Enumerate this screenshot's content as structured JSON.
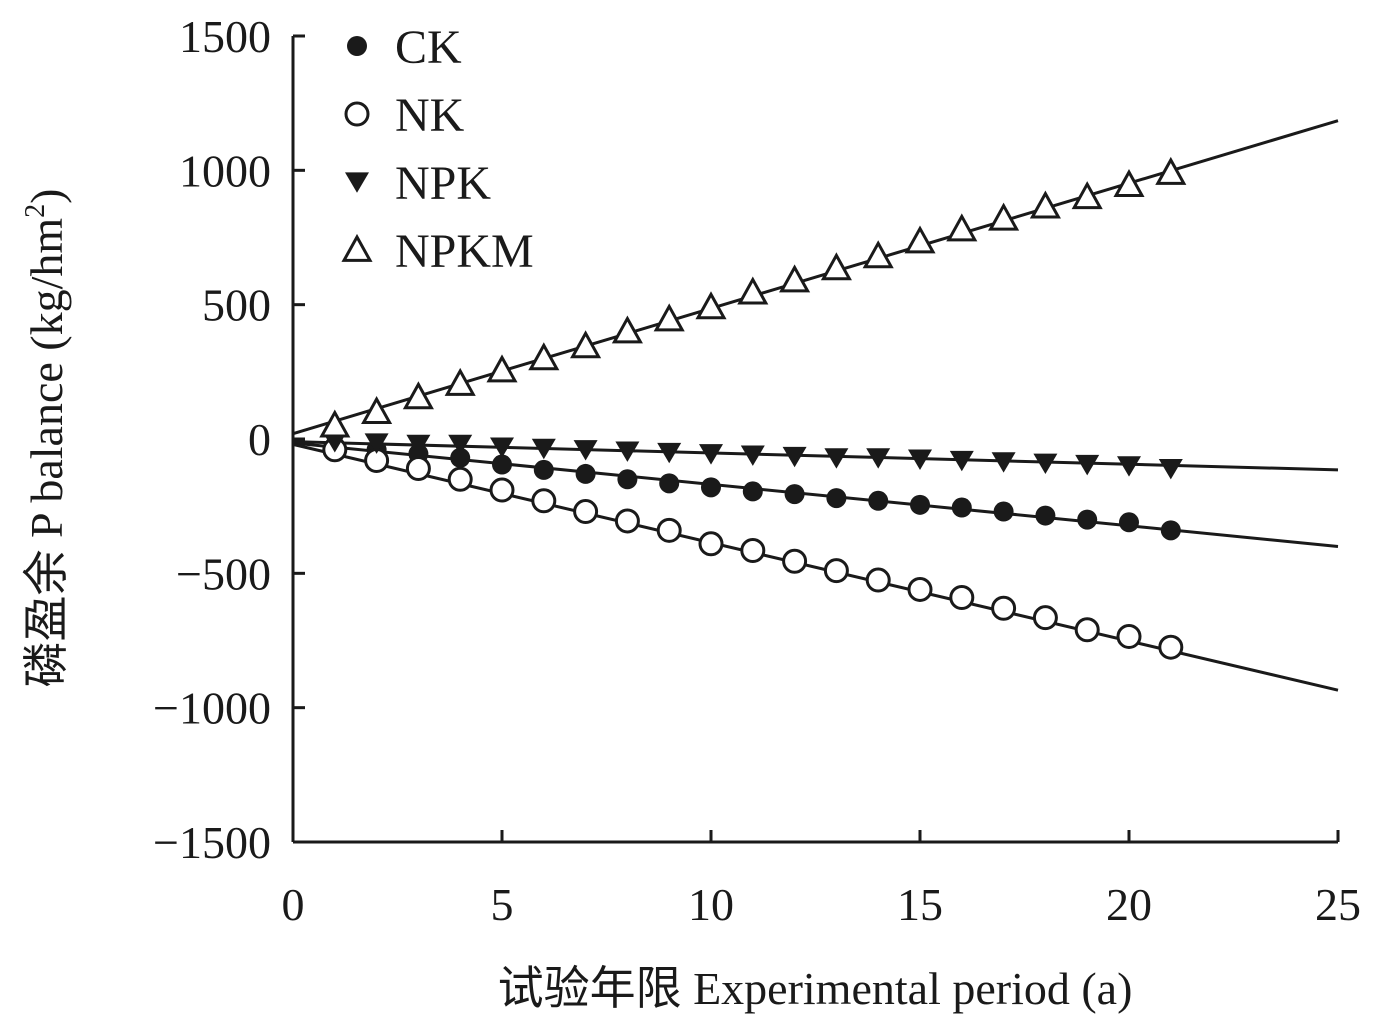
{
  "chart_data": {
    "type": "scatter",
    "title": "",
    "xlabel": "试验年限 Experimental period (a)",
    "ylabel": "磷盈余 P balance (kg/hm",
    "ylabel_sup": "2",
    "ylabel_close": ")",
    "xlim": [
      0,
      25
    ],
    "ylim": [
      -1500,
      1500
    ],
    "xticks": [
      0,
      5,
      10,
      15,
      20,
      25
    ],
    "xtick_labels": [
      "0",
      "5",
      "10",
      "15",
      "20",
      "25"
    ],
    "yticks": [
      1500,
      1000,
      500,
      0,
      -500,
      -1000,
      -1500
    ],
    "ytick_labels": [
      "1500",
      "1000",
      "500",
      "0",
      "−500",
      "−1000",
      "−1500"
    ],
    "legend_position": "top-left",
    "grid": false,
    "x": [
      1,
      2,
      3,
      4,
      5,
      6,
      7,
      8,
      9,
      10,
      11,
      12,
      13,
      14,
      15,
      16,
      17,
      18,
      19,
      20,
      21
    ],
    "series": [
      {
        "name": "CK",
        "marker": "filled-circle",
        "values": [
          -25,
          -40,
          -55,
          -70,
          -95,
          -115,
          -130,
          -150,
          -165,
          -180,
          -195,
          -205,
          -220,
          -230,
          -245,
          -255,
          -270,
          -285,
          -300,
          -310,
          -340
        ],
        "fit_line": {
          "x": [
            0,
            25
          ],
          "y": [
            -15,
            -400
          ]
        }
      },
      {
        "name": "NK",
        "marker": "open-circle",
        "values": [
          -40,
          -80,
          -110,
          -150,
          -190,
          -230,
          -270,
          -305,
          -340,
          -390,
          -415,
          -455,
          -490,
          -525,
          -560,
          -590,
          -630,
          -665,
          -710,
          -735,
          -775
        ],
        "fit_line": {
          "x": [
            0,
            25
          ],
          "y": [
            -20,
            -935
          ]
        }
      },
      {
        "name": "NPK",
        "marker": "filled-triangle-down",
        "values": [
          -10,
          -15,
          -20,
          -20,
          -30,
          -35,
          -40,
          -45,
          -50,
          -55,
          -60,
          -65,
          -70,
          -70,
          -75,
          -80,
          -85,
          -90,
          -95,
          -100,
          -110
        ],
        "fit_line": {
          "x": [
            0,
            25
          ],
          "y": [
            -10,
            -115
          ]
        }
      },
      {
        "name": "NPKM",
        "marker": "open-triangle-up",
        "values": [
          50,
          100,
          155,
          205,
          255,
          300,
          345,
          400,
          445,
          490,
          545,
          590,
          635,
          680,
          735,
          780,
          820,
          865,
          900,
          945,
          990
        ],
        "fit_line": {
          "x": [
            0,
            25
          ],
          "y": [
            20,
            1185
          ]
        }
      }
    ]
  }
}
